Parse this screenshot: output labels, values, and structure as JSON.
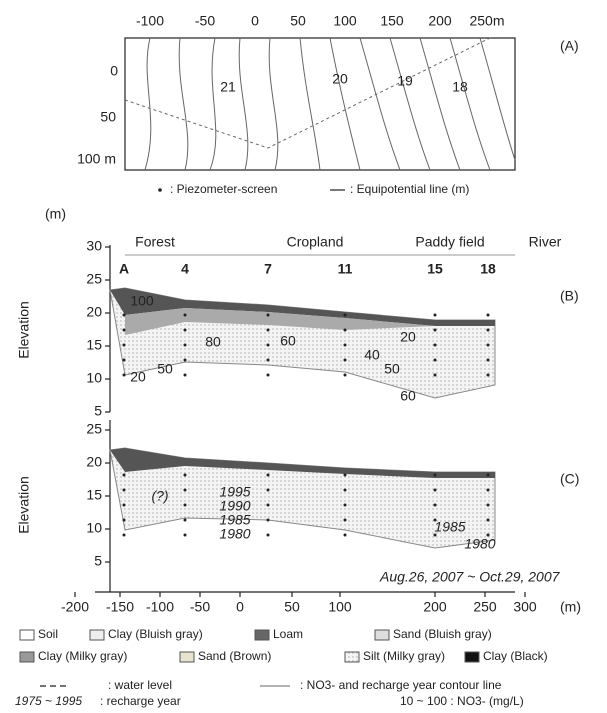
{
  "panel_a": {
    "label": "(A)",
    "x_ticks": [
      "-100",
      "-50",
      "0",
      "50",
      "100",
      "150",
      "200",
      "250m"
    ],
    "y_ticks": [
      "0",
      "50",
      "100 m"
    ],
    "contour_labels": [
      "21",
      "20",
      "19",
      "18"
    ],
    "legend": [
      ": Piezometer-screen",
      ": Equipotential line (m)"
    ]
  },
  "panel_b": {
    "label": "(B)",
    "unit": "(m)",
    "y_title": "Elevation",
    "y_ticks": [
      "30",
      "25",
      "20",
      "15",
      "10",
      "5"
    ],
    "land_use": [
      "Forest",
      "Cropland",
      "Paddy field",
      "River"
    ],
    "wells": [
      "A",
      "4",
      "7",
      "11",
      "15",
      "18"
    ],
    "contour_labels": [
      "100",
      "80",
      "60",
      "40",
      "20",
      "20",
      "50",
      "50",
      "60"
    ]
  },
  "panel_c": {
    "label": "(C)",
    "y_title": "Elevation",
    "y_ticks": [
      "25",
      "20",
      "15",
      "10",
      "5"
    ],
    "year_labels": [
      "(?)",
      "1995",
      "1990",
      "1985",
      "1980",
      "1985",
      "1980"
    ],
    "period": "Aug.26, 2007 ~ Oct.29, 2007",
    "x_ticks": [
      "-200",
      "-150",
      "-100",
      "-50",
      "0",
      "50",
      "100",
      "200",
      "250",
      "300"
    ],
    "x_unit": "(m)"
  },
  "legend": {
    "items": [
      "Soil",
      "Clay (Bluish gray)",
      "Loam",
      "Sand (Bluish gray)",
      "Clay (Milky gray)",
      "Sand (Brown)",
      "Silt (Milky gray)",
      "Clay (Black)"
    ],
    "water_level": ": water level",
    "contour_line": ": NO3- and recharge year contour line",
    "recharge_range": "1975 ~ 1995",
    "recharge_text": ": recharge year",
    "no3_range": "10 ~ 100 : NO3- (mg/L)"
  }
}
